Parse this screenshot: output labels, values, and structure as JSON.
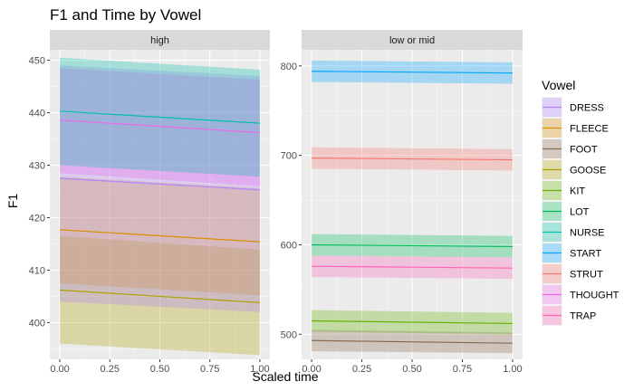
{
  "chart_data": {
    "type": "line",
    "title": "F1 and Time by Vowel",
    "xlabel": "Scaled time",
    "ylabel": "F1",
    "grid": true,
    "legend": {
      "title": "Vowel",
      "position": "right"
    },
    "x_ticks": [
      0.0,
      0.25,
      0.5,
      0.75,
      1.0
    ],
    "x_tick_labels": [
      "0.00",
      "0.25",
      "0.50",
      "0.75",
      "1.00"
    ],
    "xlim": [
      -0.05,
      1.05
    ],
    "colors": {
      "DRESS": "#F8766D",
      "FLEECE": "#DB8E00",
      "FOOT": "#AEA200",
      "GOOSE": "#64B200",
      "KIT": "#00BD5C",
      "LOT": "#00C1A7",
      "NURSE": "#00BADE",
      "START": "#00A6FF",
      "STRUT": "#B385FF",
      "THOUGHT": "#EF67EB",
      "TRAP": "#FF63B6"
    },
    "legend_items": [
      {
        "name": "DRESS",
        "color": "#B385FF"
      },
      {
        "name": "FLEECE",
        "color": "#DB8E00"
      },
      {
        "name": "FOOT",
        "color": "#8B6B4F"
      },
      {
        "name": "GOOSE",
        "color": "#AEA200"
      },
      {
        "name": "KIT",
        "color": "#64B200"
      },
      {
        "name": "LOT",
        "color": "#00BD5C"
      },
      {
        "name": "NURSE",
        "color": "#00C1A7"
      },
      {
        "name": "START",
        "color": "#00A6FF"
      },
      {
        "name": "STRUT",
        "color": "#F8766D"
      },
      {
        "name": "THOUGHT",
        "color": "#EF67EB"
      },
      {
        "name": "TRAP",
        "color": "#FF63B6"
      }
    ],
    "panels": [
      {
        "name": "high",
        "ylim": [
          393,
          452
        ],
        "y_ticks": [
          400,
          410,
          420,
          430,
          440,
          450
        ],
        "series": [
          {
            "name": "GOOSE",
            "color": "#AEA200",
            "x": [
              0,
              1
            ],
            "y": [
              406.2,
              403.8
            ],
            "lower": [
              396.0,
              393.8
            ],
            "upper": [
              416.5,
              413.9
            ]
          },
          {
            "name": "FLEECE",
            "color": "#DB8E00",
            "x": [
              0,
              1
            ],
            "y": [
              417.7,
              415.4
            ],
            "lower": [
              407.5,
              405.2
            ],
            "upper": [
              427.8,
              425.6
            ]
          },
          {
            "name": "DRESS",
            "color": "#B385FF",
            "x": [
              0,
              1
            ],
            "y": [
              427.5,
              425.3
            ],
            "lower": [
              404.0,
              402.0
            ],
            "upper": [
              449.0,
              447.0
            ]
          },
          {
            "name": "THOUGHT",
            "color": "#EF67EB",
            "x": [
              0,
              1
            ],
            "y": [
              438.6,
              436.2
            ],
            "lower": [
              428.5,
              426.0
            ],
            "upper": [
              448.5,
              446.3
            ]
          },
          {
            "name": "NURSE",
            "color": "#00C1A7",
            "x": [
              0,
              1
            ],
            "y": [
              440.3,
              438.0
            ],
            "lower": [
              430.0,
              427.8
            ],
            "upper": [
              450.5,
              448.2
            ]
          }
        ]
      },
      {
        "name": "low or mid",
        "ylim": [
          472,
          818
        ],
        "y_ticks": [
          500,
          600,
          700,
          800
        ],
        "series": [
          {
            "name": "FOOT",
            "color": "#8B6B4F",
            "x": [
              0,
              1
            ],
            "y": [
              493,
              490
            ],
            "lower": [
              481,
              479
            ],
            "upper": [
              505,
              502
            ]
          },
          {
            "name": "KIT",
            "color": "#64B200",
            "x": [
              0,
              1
            ],
            "y": [
              515,
              512
            ],
            "lower": [
              503,
              500
            ],
            "upper": [
              527,
              524
            ]
          },
          {
            "name": "TRAP",
            "color": "#FF63B6",
            "x": [
              0,
              1
            ],
            "y": [
              576,
              574
            ],
            "lower": [
              564,
              562
            ],
            "upper": [
              588,
              586
            ]
          },
          {
            "name": "LOT",
            "color": "#00BD5C",
            "x": [
              0,
              1
            ],
            "y": [
              600,
              598
            ],
            "lower": [
              588,
              586
            ],
            "upper": [
              612,
              610
            ]
          },
          {
            "name": "STRUT",
            "color": "#F8766D",
            "x": [
              0,
              1
            ],
            "y": [
              697,
              695
            ],
            "lower": [
              685,
              683
            ],
            "upper": [
              709,
              707
            ]
          },
          {
            "name": "START",
            "color": "#00A6FF",
            "x": [
              0,
              1
            ],
            "y": [
              794,
              792
            ],
            "lower": [
              782,
              780
            ],
            "upper": [
              806,
              804
            ]
          }
        ]
      }
    ]
  }
}
